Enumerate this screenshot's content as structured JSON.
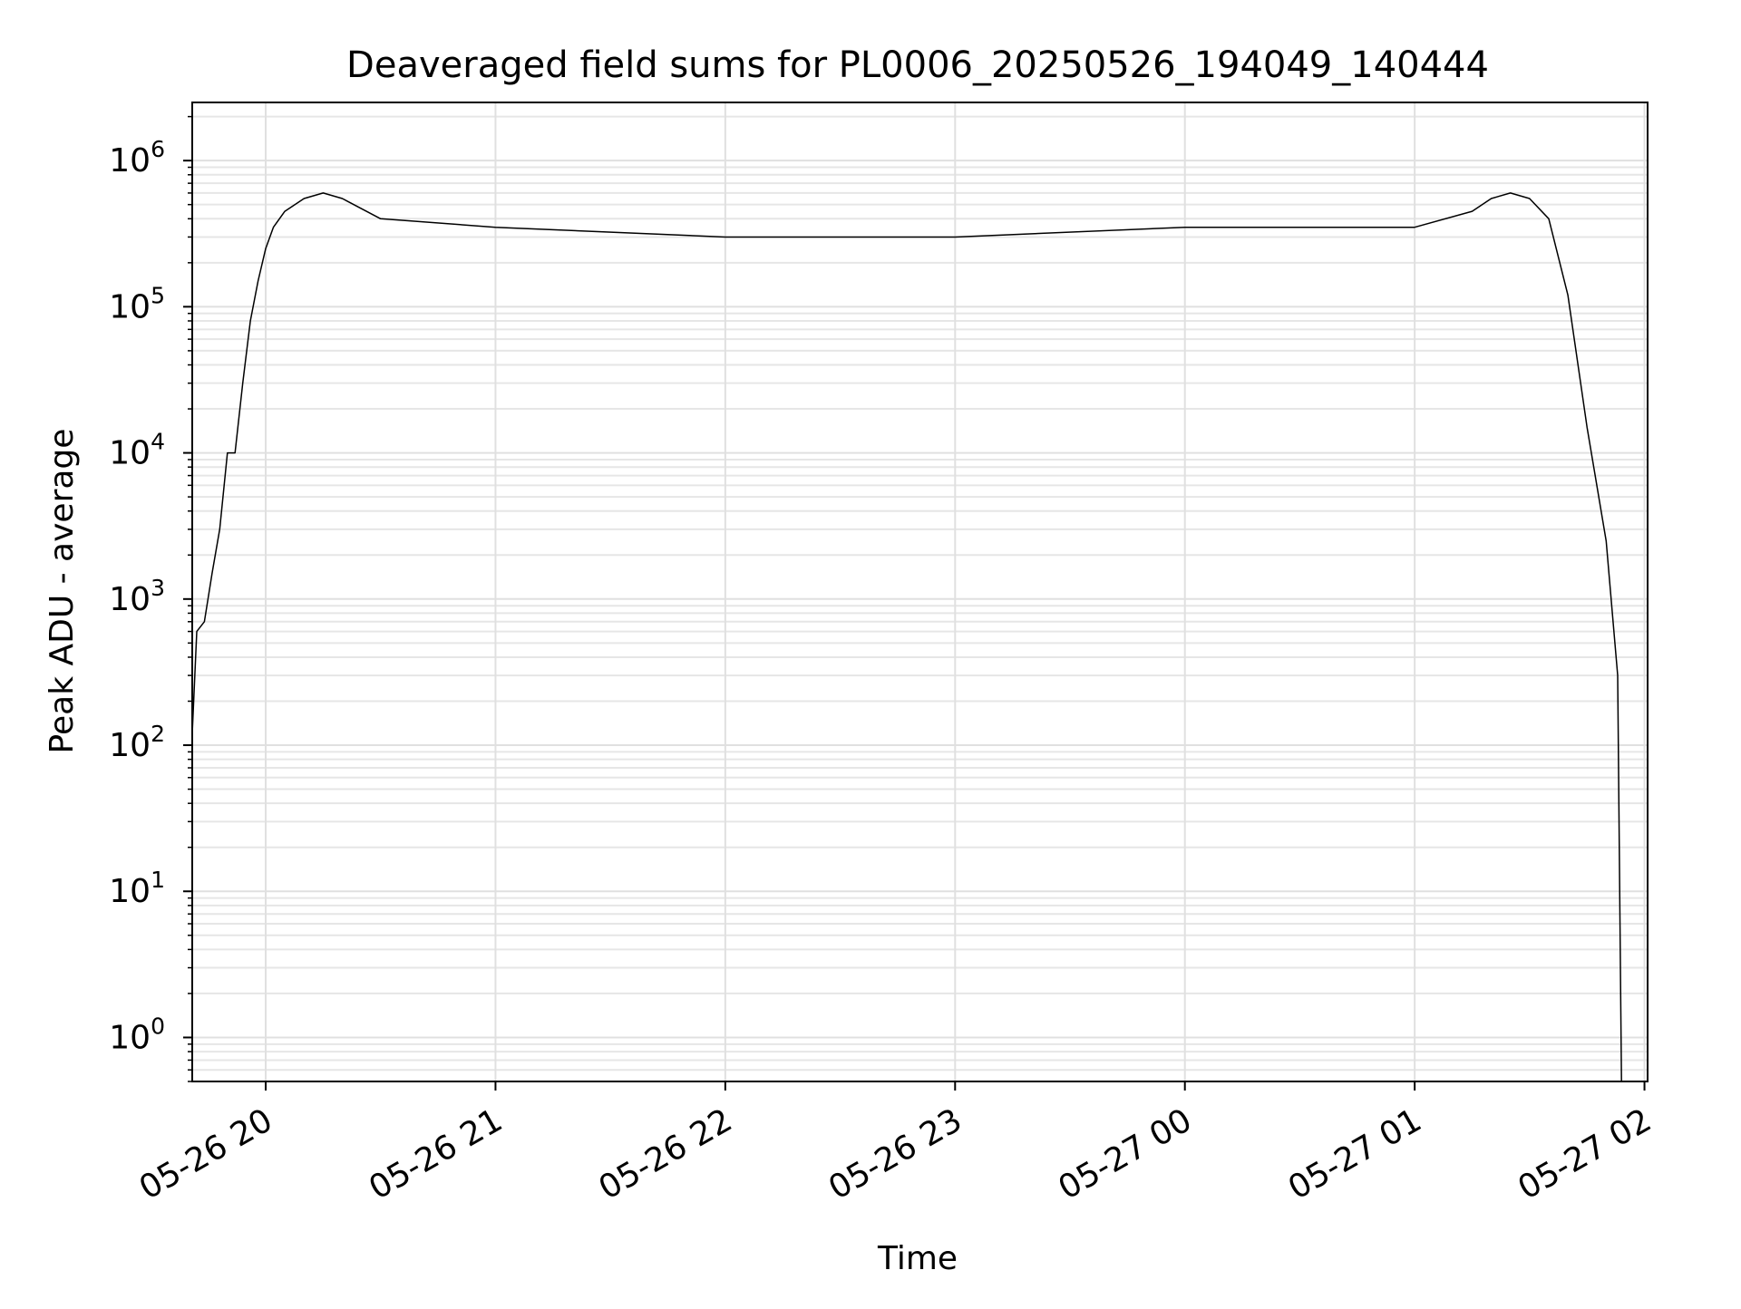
{
  "chart_data": {
    "type": "line",
    "title": "Deaveraged field sums for PL0006_20250526_194049_140444",
    "xlabel": "Time",
    "ylabel": "Peak ADU - average",
    "yscale": "log",
    "ylim": [
      0.5,
      2500000
    ],
    "xlim": [
      "2025-05-26 19:40:49",
      "2025-05-27 02:00:49"
    ],
    "grid": true,
    "x_ticks": [
      {
        "t": "2025-05-26 20:00",
        "label": "05-26 20"
      },
      {
        "t": "2025-05-26 21:00",
        "label": "05-26 21"
      },
      {
        "t": "2025-05-26 22:00",
        "label": "05-26 22"
      },
      {
        "t": "2025-05-26 23:00",
        "label": "05-26 23"
      },
      {
        "t": "2025-05-27 00:00",
        "label": "05-27 00"
      },
      {
        "t": "2025-05-27 01:00",
        "label": "05-27 01"
      },
      {
        "t": "2025-05-27 02:00",
        "label": "05-27 02"
      }
    ],
    "y_ticks": [
      {
        "value": 1,
        "base": "10",
        "exp": "0"
      },
      {
        "value": 10,
        "base": "10",
        "exp": "1"
      },
      {
        "value": 100,
        "base": "10",
        "exp": "2"
      },
      {
        "value": 1000,
        "base": "10",
        "exp": "3"
      },
      {
        "value": 10000,
        "base": "10",
        "exp": "4"
      },
      {
        "value": 100000,
        "base": "10",
        "exp": "5"
      },
      {
        "value": 1000000,
        "base": "10",
        "exp": "6"
      }
    ],
    "series": [
      {
        "color": "#000000",
        "x": [
          "2025-05-26 19:40:49",
          "2025-05-26 19:42:00",
          "2025-05-26 19:44:00",
          "2025-05-26 19:46:00",
          "2025-05-26 19:48:00",
          "2025-05-26 19:50:00",
          "2025-05-26 19:52:00",
          "2025-05-26 19:54:00",
          "2025-05-26 19:56:00",
          "2025-05-26 19:58:00",
          "2025-05-26 20:00:00",
          "2025-05-26 20:02:00",
          "2025-05-26 20:05:00",
          "2025-05-26 20:10:00",
          "2025-05-26 20:15:00",
          "2025-05-26 20:20:00",
          "2025-05-26 20:30:00",
          "2025-05-26 21:00:00",
          "2025-05-26 22:00:00",
          "2025-05-26 23:00:00",
          "2025-05-27 00:00:00",
          "2025-05-27 01:00:00",
          "2025-05-27 01:15:00",
          "2025-05-27 01:20:00",
          "2025-05-27 01:25:00",
          "2025-05-27 01:30:00",
          "2025-05-27 01:35:00",
          "2025-05-27 01:40:00",
          "2025-05-27 01:45:00",
          "2025-05-27 01:50:00",
          "2025-05-27 01:53:00",
          "2025-05-27 01:54:00"
        ],
        "y": [
          120,
          600,
          700,
          1500,
          3000,
          10000,
          10000,
          30000,
          80000,
          150000,
          250000,
          350000,
          450000,
          550000,
          600000,
          550000,
          400000,
          350000,
          300000,
          300000,
          350000,
          350000,
          450000,
          550000,
          600000,
          550000,
          400000,
          120000,
          15000,
          2500,
          300,
          0.5
        ]
      }
    ]
  }
}
